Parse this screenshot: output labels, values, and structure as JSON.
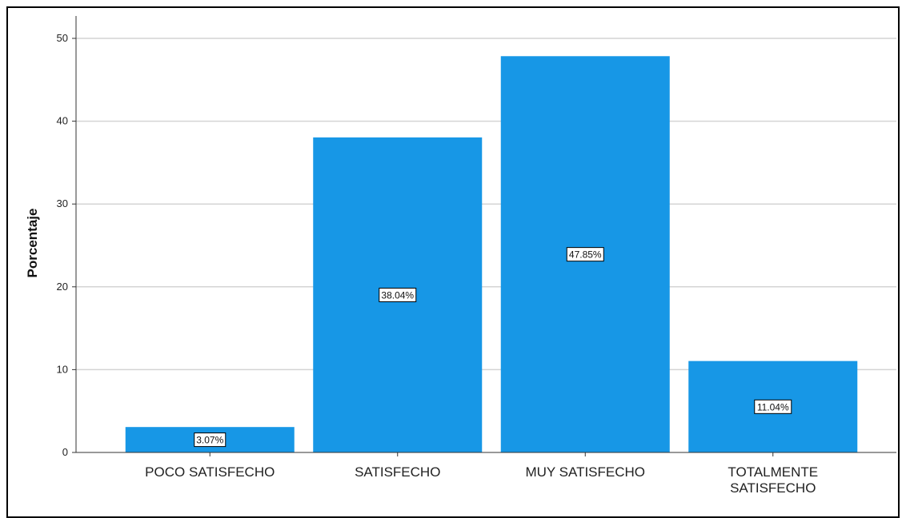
{
  "chart_data": {
    "type": "bar",
    "categories": [
      "POCO SATISFECHO",
      "SATISFECHO",
      "MUY SATISFECHO",
      "TOTALMENTE SATISFECHO"
    ],
    "category_label_lines": [
      [
        "POCO SATISFECHO"
      ],
      [
        "SATISFECHO"
      ],
      [
        "MUY SATISFECHO"
      ],
      [
        "TOTALMENTE",
        "SATISFECHO"
      ]
    ],
    "values": [
      3.07,
      38.04,
      47.85,
      11.04
    ],
    "data_labels": [
      "3.07%",
      "38.04%",
      "47.85%",
      "11.04%"
    ],
    "ylabel": "Porcentaje",
    "xlabel": "",
    "ylim": [
      0,
      50
    ],
    "yticks": [
      0,
      10,
      20,
      30,
      40,
      50
    ],
    "grid": true,
    "colors": {
      "bar": "#1797e6",
      "grid": "#d4d4d4",
      "axis": "#333333"
    }
  }
}
